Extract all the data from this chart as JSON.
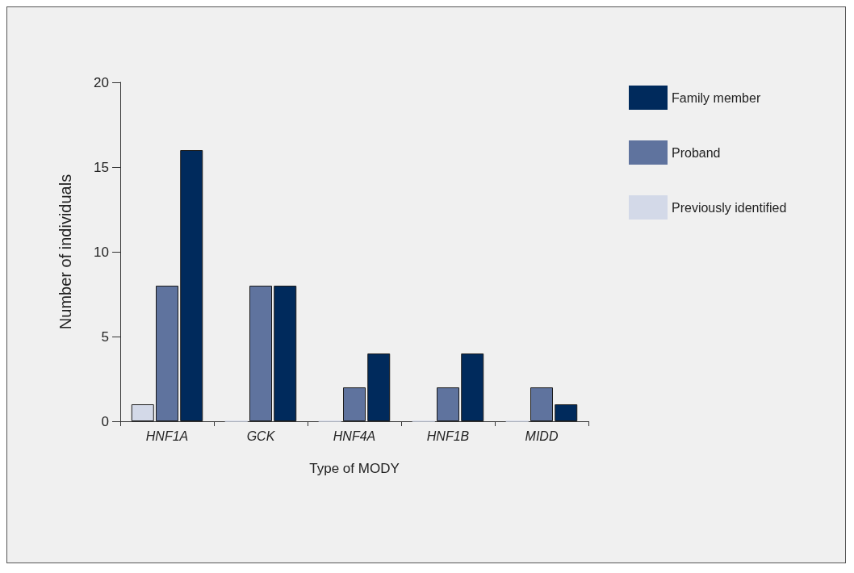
{
  "chart_data": {
    "type": "bar",
    "xlabel": "Type of MODY",
    "ylabel": "Number of individuals",
    "categories": [
      "HNF1A",
      "GCK",
      "HNF4A",
      "HNF1B",
      "MIDD"
    ],
    "series": [
      {
        "name": "Previously identified",
        "color": "#d3d9e8",
        "values": [
          1,
          0,
          0,
          0,
          0
        ]
      },
      {
        "name": "Proband",
        "color": "#5f739e",
        "values": [
          8,
          8,
          2,
          2,
          2
        ]
      },
      {
        "name": "Family member",
        "color": "#002a5c",
        "values": [
          16,
          8,
          4,
          4,
          1
        ]
      }
    ],
    "ylim": [
      0,
      20
    ],
    "yticks": [
      0,
      5,
      10,
      15,
      20
    ],
    "grid": false,
    "legend": "top right"
  }
}
